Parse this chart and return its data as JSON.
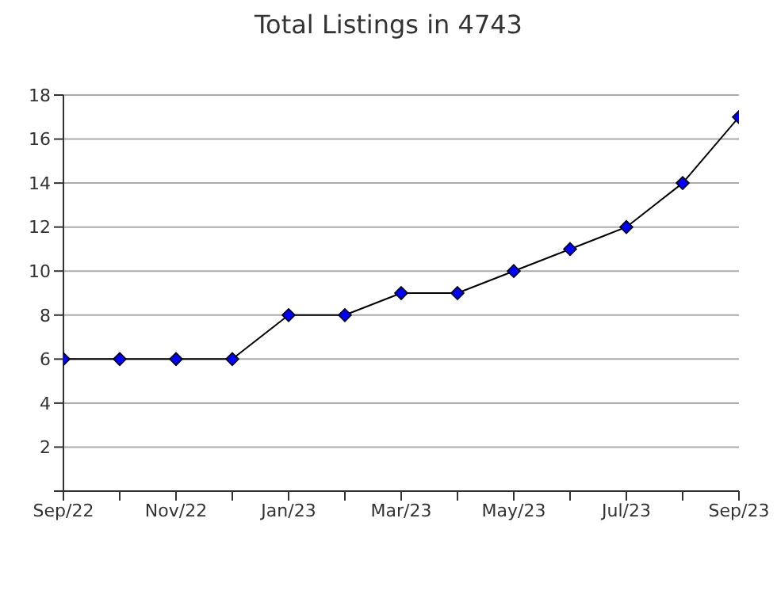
{
  "chart_data": {
    "type": "line",
    "title": "Total Listings in 4743",
    "categories": [
      "Sep/22",
      null,
      "Nov/22",
      null,
      "Jan/23",
      null,
      "Mar/23",
      null,
      "May/23",
      null,
      "Jul/23",
      null,
      "Sep/23"
    ],
    "series": [
      {
        "color": "#0000ff",
        "values": [
          6,
          6,
          6,
          6,
          8,
          8,
          9,
          9,
          10,
          11,
          12,
          14,
          17
        ]
      }
    ],
    "ylim": [
      0,
      18
    ],
    "yticks": [
      {
        "value": 0,
        "label": null
      },
      2,
      4,
      6,
      8,
      10,
      12,
      14,
      16,
      18
    ],
    "grid": "y",
    "marker": "diamond",
    "line_style": "solid",
    "legend": false
  }
}
